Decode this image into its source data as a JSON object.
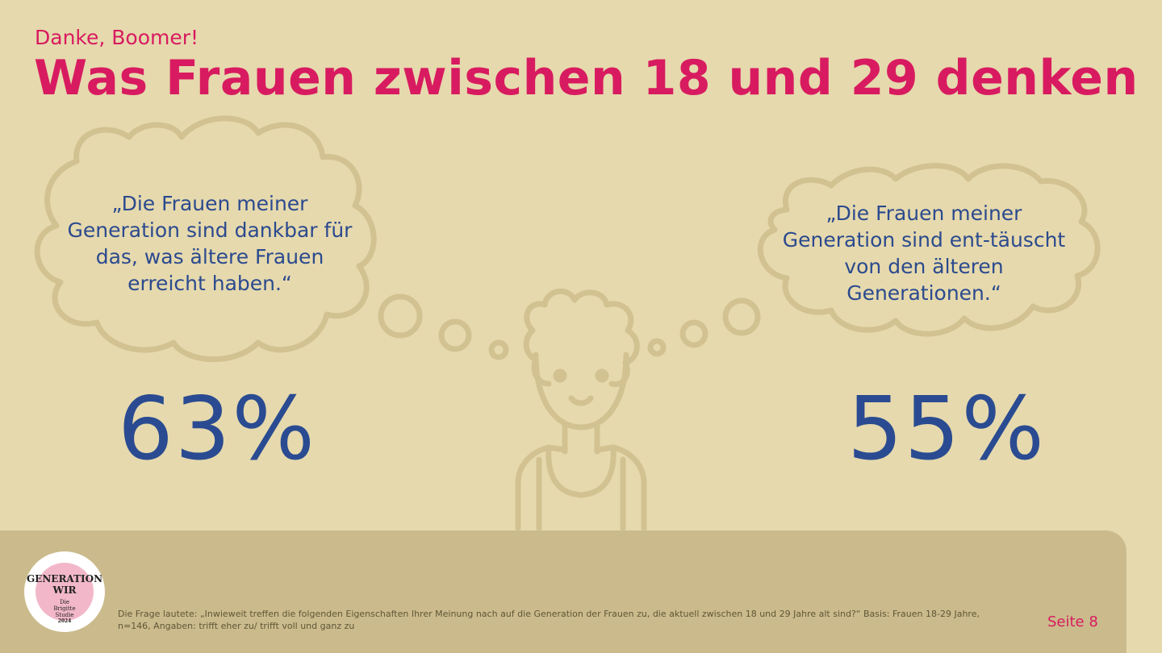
{
  "header": {
    "kicker": "Danke, Boomer!",
    "title": "Was Frauen zwischen 18 und 29 denken"
  },
  "quotes": [
    {
      "text": "„Die Frauen meiner Generation sind dankbar für das, was ältere Frauen erreicht haben.“",
      "percent": "63%"
    },
    {
      "text": "„Die Frauen meiner Generation sind ent-täuscht von den älteren Generationen.“",
      "percent": "55%"
    }
  ],
  "footer": {
    "logo": {
      "line1": "GENERATION",
      "line2": "WIR",
      "line3": "Die",
      "line4": "Brigitte",
      "line5": "Studie",
      "line6": "2024"
    },
    "footnote": "Die Frage lautete: „Inwieweit treffen die folgenden Eigenschaften Ihrer Meinung nach auf die Generation der Frauen zu, die aktuell zwischen 18 und 29 Jahre alt sind?“ Basis: Frauen 18-29 Jahre, n=146, Angaben: trifft eher zu/ trifft voll und ganz zu",
    "page_label": "Seite 8"
  },
  "colors": {
    "background": "#e6d9ad",
    "accent": "#d81b60",
    "text_blue": "#2a4b91",
    "illustration": "#d3c291",
    "footer_band": "#cbbb8c"
  },
  "icons": [
    "thought-cloud-left-icon",
    "thought-cloud-right-icon",
    "woman-illustration-icon"
  ]
}
